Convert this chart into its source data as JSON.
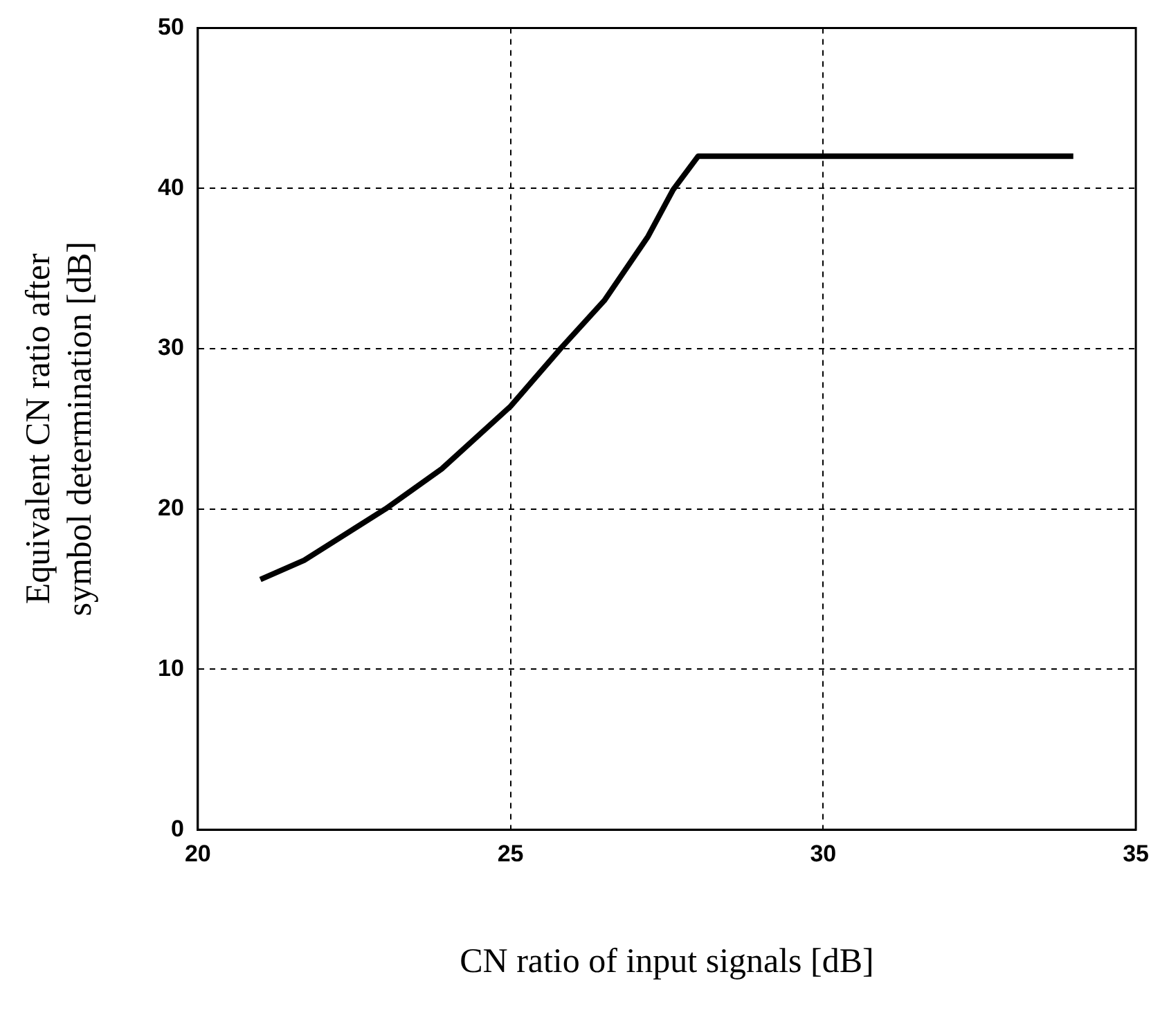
{
  "chart_data": {
    "type": "line",
    "xlabel": "CN ratio of input signals [dB]",
    "ylabel": "Equivalent CN ratio after symbol determination [dB]",
    "x": [
      21,
      21.7,
      23,
      23.9,
      25,
      25.8,
      26.5,
      27.2,
      27.6,
      28,
      34
    ],
    "series": [
      {
        "color": "#000000",
        "values": [
          15.6,
          16.8,
          20,
          22.5,
          26.4,
          30,
          33,
          37,
          39.9,
          42,
          42
        ]
      }
    ],
    "xlim": [
      20,
      35
    ],
    "xticks": [
      20,
      25,
      30,
      35
    ],
    "ylim": [
      0,
      50
    ],
    "yticks": [
      0,
      10,
      20,
      30,
      40,
      50
    ],
    "grid": true,
    "legend": false,
    "marker": "none",
    "line_style": "solid"
  }
}
